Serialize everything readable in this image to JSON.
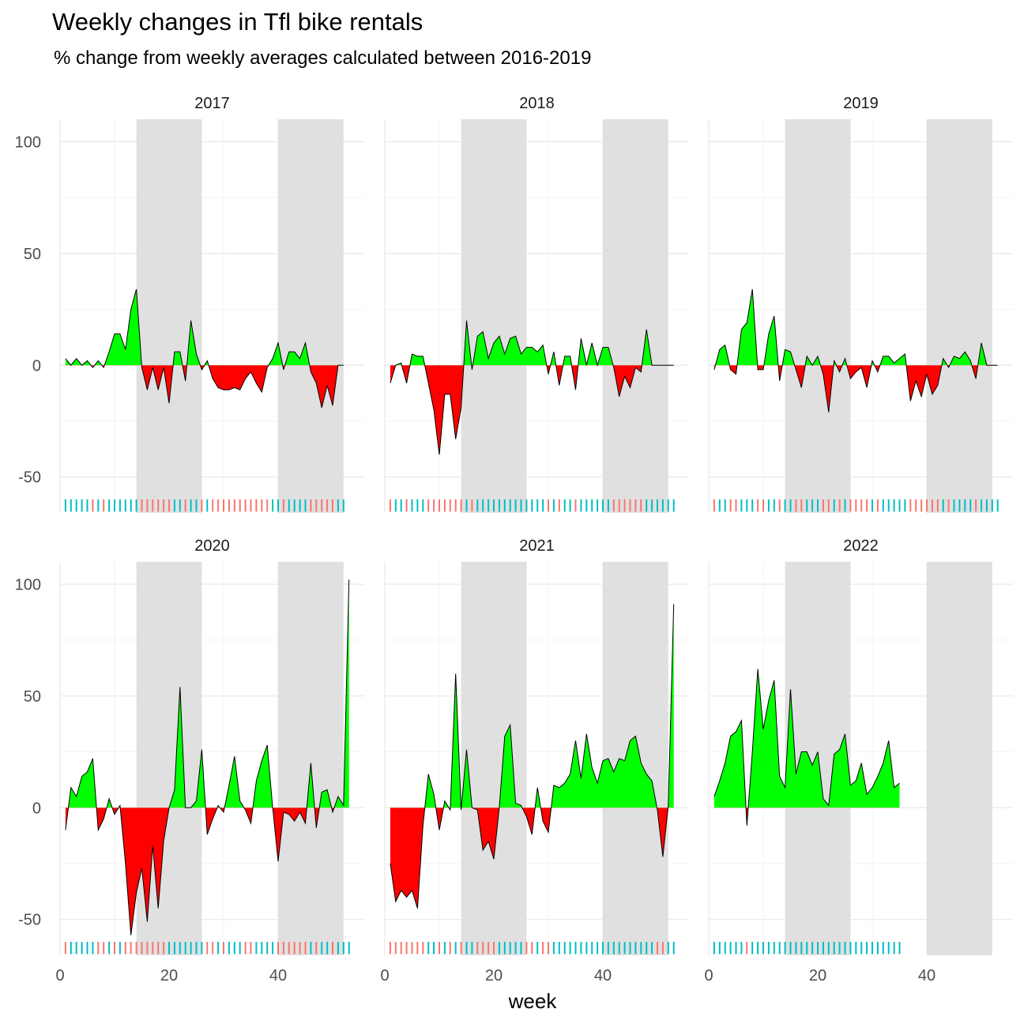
{
  "chart_data": {
    "type": "area",
    "title": "Weekly changes in Tfl bike rentals",
    "subtitle": "% change from weekly averages calculated between 2016-2019",
    "xlabel": "week",
    "ylabel": "",
    "xlim": [
      0,
      55
    ],
    "ylim": [
      -66,
      110
    ],
    "x_ticks": [
      0,
      20,
      40
    ],
    "y_ticks": [
      100,
      50,
      0,
      -50
    ],
    "y_tick_labels": [
      "100",
      "50",
      "0",
      "-50"
    ],
    "shaded_week_ranges": [
      [
        14,
        26
      ],
      [
        40,
        52
      ]
    ],
    "colors": {
      "positive": "#00ff00",
      "negative": "#ff0000",
      "rug_positive": "#00bfc4",
      "rug_negative": "#f8766d",
      "shade": "#e0e0e0"
    },
    "grid": true,
    "panels": [
      {
        "year": "2017",
        "weeks": [
          1,
          2,
          3,
          4,
          5,
          6,
          7,
          8,
          9,
          10,
          11,
          12,
          13,
          14,
          15,
          16,
          17,
          18,
          19,
          20,
          21,
          22,
          23,
          24,
          25,
          26,
          27,
          28,
          29,
          30,
          31,
          32,
          33,
          34,
          35,
          36,
          37,
          38,
          39,
          40,
          41,
          42,
          43,
          44,
          45,
          46,
          47,
          48,
          49,
          50,
          51,
          52
        ],
        "values": [
          3,
          0,
          3,
          0,
          2,
          -1,
          2,
          -1,
          6,
          14,
          14,
          7,
          25,
          34,
          -1,
          -11,
          -1,
          -11,
          -1,
          -17,
          6,
          6,
          -7,
          20,
          5,
          -2,
          2,
          -6,
          -10,
          -11,
          -11,
          -10,
          -11,
          -6,
          -3,
          -8,
          -12,
          -1,
          3,
          10,
          -2,
          6,
          6,
          3,
          10,
          -3,
          -8,
          -19,
          -9,
          -18,
          0,
          0
        ]
      },
      {
        "year": "2018",
        "weeks": [
          1,
          2,
          3,
          4,
          5,
          6,
          7,
          8,
          9,
          10,
          11,
          12,
          13,
          14,
          15,
          16,
          17,
          18,
          19,
          20,
          21,
          22,
          23,
          24,
          25,
          26,
          27,
          28,
          29,
          30,
          31,
          32,
          33,
          34,
          35,
          36,
          37,
          38,
          39,
          40,
          41,
          42,
          43,
          44,
          45,
          46,
          47,
          48,
          49,
          50,
          51,
          52,
          53
        ],
        "values": [
          -8,
          0,
          1,
          -8,
          5,
          4,
          4,
          -8,
          -20,
          -40,
          -13,
          -13,
          -33,
          -19,
          20,
          -2,
          13,
          15,
          3,
          10,
          13,
          5,
          12,
          13,
          5,
          8,
          8,
          6,
          9,
          -4,
          6,
          -9,
          4,
          4,
          -11,
          12,
          0,
          10,
          0,
          8,
          8,
          -1,
          -14,
          -5,
          -10,
          -1,
          -3,
          16,
          0,
          0,
          0,
          0,
          0
        ]
      },
      {
        "year": "2019",
        "weeks": [
          1,
          2,
          3,
          4,
          5,
          6,
          7,
          8,
          9,
          10,
          11,
          12,
          13,
          14,
          15,
          16,
          17,
          18,
          19,
          20,
          21,
          22,
          23,
          24,
          25,
          26,
          27,
          28,
          29,
          30,
          31,
          32,
          33,
          34,
          35,
          36,
          37,
          38,
          39,
          40,
          41,
          42,
          43,
          44,
          45,
          46,
          47,
          48,
          49,
          50,
          51,
          52,
          53
        ],
        "values": [
          -2,
          7,
          9,
          -2,
          -4,
          16,
          19,
          34,
          -2,
          -2,
          14,
          22,
          -7,
          7,
          6,
          -2,
          -10,
          4,
          0,
          4,
          -4,
          -21,
          2,
          -3,
          3,
          -6,
          -3,
          -1,
          -10,
          2,
          -3,
          4,
          4,
          1,
          3,
          5,
          -16,
          -7,
          -14,
          -4,
          -13,
          -9,
          3,
          -1,
          4,
          3,
          6,
          2,
          -6,
          10,
          0,
          0,
          0
        ]
      },
      {
        "year": "2020",
        "weeks": [
          1,
          2,
          3,
          4,
          5,
          6,
          7,
          8,
          9,
          10,
          11,
          12,
          13,
          14,
          15,
          16,
          17,
          18,
          19,
          20,
          21,
          22,
          23,
          24,
          25,
          26,
          27,
          28,
          29,
          30,
          31,
          32,
          33,
          34,
          35,
          36,
          37,
          38,
          39,
          40,
          41,
          42,
          43,
          44,
          45,
          46,
          47,
          48,
          49,
          50,
          51,
          52,
          53
        ],
        "values": [
          -10,
          9,
          5,
          14,
          16,
          22,
          -10,
          -5,
          4,
          -3,
          1,
          -25,
          -57,
          -38,
          -27,
          -51,
          -17,
          -45,
          -15,
          0,
          8,
          54,
          0,
          0,
          3,
          26,
          -12,
          -5,
          1,
          -2,
          10,
          23,
          3,
          -1,
          -7,
          12,
          21,
          28,
          0,
          -24,
          -2,
          -3,
          -6,
          -2,
          -7,
          20,
          -9,
          7,
          8,
          -2,
          5,
          1,
          102
        ]
      },
      {
        "year": "2021",
        "weeks": [
          1,
          2,
          3,
          4,
          5,
          6,
          7,
          8,
          9,
          10,
          11,
          12,
          13,
          14,
          15,
          16,
          17,
          18,
          19,
          20,
          21,
          22,
          23,
          24,
          25,
          26,
          27,
          28,
          29,
          30,
          31,
          32,
          33,
          34,
          35,
          36,
          37,
          38,
          39,
          40,
          41,
          42,
          43,
          44,
          45,
          46,
          47,
          48,
          49,
          50,
          51,
          52,
          53
        ],
        "values": [
          -25,
          -42,
          -37,
          -40,
          -37,
          -45,
          -8,
          15,
          6,
          -10,
          3,
          -1,
          60,
          -1,
          26,
          0,
          -1,
          -19,
          -15,
          -23,
          0,
          32,
          37,
          2,
          1,
          -4,
          -12,
          9,
          -6,
          -11,
          10,
          9,
          11,
          15,
          30,
          13,
          33,
          18,
          11,
          21,
          22,
          16,
          22,
          21,
          30,
          32,
          20,
          15,
          12,
          -1,
          -22,
          1,
          91
        ]
      },
      {
        "year": "2022",
        "weeks": [
          1,
          2,
          3,
          4,
          5,
          6,
          7,
          8,
          9,
          10,
          11,
          12,
          13,
          14,
          15,
          16,
          17,
          18,
          19,
          20,
          21,
          22,
          23,
          24,
          25,
          26,
          27,
          28,
          29,
          30,
          31,
          32,
          33,
          34,
          35
        ],
        "values": [
          5,
          12,
          20,
          32,
          34,
          39,
          -8,
          25,
          62,
          35,
          48,
          57,
          14,
          9,
          53,
          15,
          25,
          25,
          19,
          25,
          4,
          1,
          24,
          26,
          33,
          10,
          12,
          20,
          6,
          9,
          14,
          20,
          30,
          9,
          11
        ]
      }
    ]
  }
}
